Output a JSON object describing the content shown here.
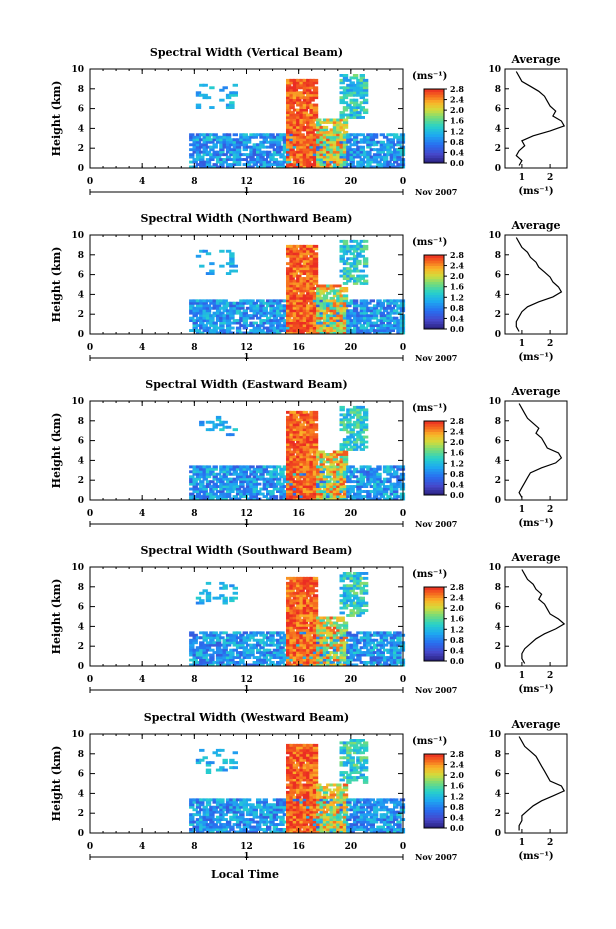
{
  "figure": {
    "xlabel": "Local Time"
  },
  "chart_data": [
    {
      "type": "heatmap",
      "title": "Spectral Width (Vertical Beam)",
      "ylabel": "Height (km)",
      "xlim": [
        0,
        24
      ],
      "ylim": [
        0,
        10
      ],
      "x_ticks": [
        "0",
        "4",
        "8",
        "12",
        "16",
        "20",
        "0"
      ],
      "y_ticks": [
        "0",
        "2",
        "4",
        "6",
        "8",
        "10"
      ],
      "colorbar": {
        "label": "(ms⁻¹)",
        "range": [
          0,
          2.8
        ],
        "ticks": [
          "0.0",
          "0.4",
          "0.8",
          "1.2",
          "1.6",
          "2.0",
          "2.4",
          "2.8"
        ]
      },
      "date_label": "Nov 2007",
      "day_marker": "1",
      "average": {
        "title": "Average",
        "xlabel": "(ms⁻¹)",
        "x_ticks": [
          "1",
          "2"
        ],
        "xlim": [
          0.4,
          2.6
        ],
        "y_ticks": [
          "0",
          "2",
          "4",
          "6",
          "8",
          "10"
        ],
        "heights": [
          0,
          0.5,
          1,
          1.5,
          2,
          2.5,
          3,
          3.5,
          4,
          4.5,
          5,
          5.5,
          6,
          6.5,
          7,
          7.5,
          8,
          8.5,
          9,
          9.5
        ],
        "values": [
          0.9,
          1.0,
          0.8,
          0.9,
          1.1,
          1.0,
          1.4,
          2.0,
          2.5,
          2.4,
          2.1,
          2.2,
          2.0,
          1.9,
          1.8,
          1.6,
          1.3,
          1.0,
          0.9,
          0.8
        ]
      }
    },
    {
      "type": "heatmap",
      "title": "Spectral Width (Northward Beam)",
      "ylabel": "Height (km)",
      "xlim": [
        0,
        24
      ],
      "ylim": [
        0,
        10
      ],
      "x_ticks": [
        "0",
        "4",
        "8",
        "12",
        "16",
        "20",
        "0"
      ],
      "y_ticks": [
        "0",
        "2",
        "4",
        "6",
        "8",
        "10"
      ],
      "colorbar": {
        "label": "(ms⁻¹)",
        "range": [
          0,
          2.8
        ],
        "ticks": [
          "0.0",
          "0.4",
          "0.8",
          "1.2",
          "1.6",
          "2.0",
          "2.4",
          "2.8"
        ]
      },
      "date_label": "Nov 2007",
      "day_marker": "1",
      "average": {
        "title": "Average",
        "xlabel": "(ms⁻¹)",
        "x_ticks": [
          "1",
          "2"
        ],
        "xlim": [
          0.4,
          2.6
        ],
        "y_ticks": [
          "0",
          "2",
          "4",
          "6",
          "8",
          "10"
        ],
        "heights": [
          0,
          0.5,
          1,
          1.5,
          2,
          2.5,
          3,
          3.5,
          4,
          4.5,
          5,
          5.5,
          6,
          6.5,
          7,
          7.5,
          8,
          8.5,
          9,
          9.5
        ],
        "values": [
          0.9,
          0.8,
          0.8,
          0.9,
          1.0,
          1.2,
          1.6,
          2.1,
          2.4,
          2.3,
          2.1,
          2.0,
          1.8,
          1.6,
          1.5,
          1.3,
          1.2,
          1.0,
          0.9,
          0.8
        ]
      }
    },
    {
      "type": "heatmap",
      "title": "Spectral Width (Eastward Beam)",
      "ylabel": "Height (km)",
      "xlim": [
        0,
        24
      ],
      "ylim": [
        0,
        10
      ],
      "x_ticks": [
        "0",
        "4",
        "8",
        "12",
        "16",
        "20",
        "0"
      ],
      "y_ticks": [
        "0",
        "2",
        "4",
        "6",
        "8",
        "10"
      ],
      "colorbar": {
        "label": "(ms⁻¹)",
        "range": [
          0,
          2.8
        ],
        "ticks": [
          "0.0",
          "0.4",
          "0.8",
          "1.2",
          "1.6",
          "2.0",
          "2.4",
          "2.8"
        ]
      },
      "date_label": "Nov 2007",
      "day_marker": "1",
      "average": {
        "title": "Average",
        "xlabel": "(ms⁻¹)",
        "x_ticks": [
          "1",
          "2"
        ],
        "xlim": [
          0.4,
          2.6
        ],
        "y_ticks": [
          "0",
          "2",
          "4",
          "6",
          "8",
          "10"
        ],
        "heights": [
          0,
          0.5,
          1,
          1.5,
          2,
          2.5,
          3,
          3.5,
          4,
          4.5,
          5,
          5.5,
          6,
          6.5,
          7,
          7.5,
          8,
          8.5,
          9,
          9.5
        ],
        "values": [
          1.0,
          0.9,
          1.0,
          1.1,
          1.2,
          1.3,
          1.7,
          2.2,
          2.4,
          2.3,
          1.9,
          1.8,
          1.7,
          1.5,
          1.6,
          1.4,
          1.2,
          1.1,
          1.0,
          0.9
        ]
      }
    },
    {
      "type": "heatmap",
      "title": "Spectral Width (Southward Beam)",
      "ylabel": "Height (km)",
      "xlim": [
        0,
        24
      ],
      "ylim": [
        0,
        10
      ],
      "x_ticks": [
        "0",
        "4",
        "8",
        "12",
        "16",
        "20",
        "0"
      ],
      "y_ticks": [
        "0",
        "2",
        "4",
        "6",
        "8",
        "10"
      ],
      "colorbar": {
        "label": "(ms⁻¹)",
        "range": [
          0,
          2.8
        ],
        "ticks": [
          "0.0",
          "0.4",
          "0.8",
          "1.2",
          "1.6",
          "2.0",
          "2.4",
          "2.8"
        ]
      },
      "date_label": "Nov 2007",
      "day_marker": "1",
      "average": {
        "title": "Average",
        "xlabel": "(ms⁻¹)",
        "x_ticks": [
          "1",
          "2"
        ],
        "xlim": [
          0.4,
          2.6
        ],
        "y_ticks": [
          "0",
          "2",
          "4",
          "6",
          "8",
          "10"
        ],
        "heights": [
          0,
          0.5,
          1,
          1.5,
          2,
          2.5,
          3,
          3.5,
          4,
          4.5,
          5,
          5.5,
          6,
          6.5,
          7,
          7.5,
          8,
          8.5,
          9,
          9.5
        ],
        "values": [
          1.1,
          1.0,
          1.0,
          1.1,
          1.3,
          1.5,
          1.8,
          2.2,
          2.5,
          2.3,
          2.0,
          1.9,
          1.8,
          1.6,
          1.7,
          1.5,
          1.4,
          1.2,
          1.1,
          1.0
        ]
      }
    },
    {
      "type": "heatmap",
      "title": "Spectral Width (Westward Beam)",
      "ylabel": "Height (km)",
      "xlim": [
        0,
        24
      ],
      "ylim": [
        0,
        10
      ],
      "x_ticks": [
        "0",
        "4",
        "8",
        "12",
        "16",
        "20",
        "0"
      ],
      "y_ticks": [
        "0",
        "2",
        "4",
        "6",
        "8",
        "10"
      ],
      "colorbar": {
        "label": "(ms⁻¹)",
        "range": [
          0,
          2.8
        ],
        "ticks": [
          "0.0",
          "0.4",
          "0.8",
          "1.2",
          "1.6",
          "2.0",
          "2.4",
          "2.8"
        ]
      },
      "date_label": "Nov 2007",
      "day_marker": "1",
      "average": {
        "title": "Average",
        "xlabel": "(ms⁻¹)",
        "x_ticks": [
          "1",
          "2"
        ],
        "xlim": [
          0.4,
          2.6
        ],
        "y_ticks": [
          "0",
          "2",
          "4",
          "6",
          "8",
          "10"
        ],
        "heights": [
          0,
          0.5,
          1,
          1.5,
          2,
          2.5,
          3,
          3.5,
          4,
          4.5,
          5,
          5.5,
          6,
          6.5,
          7,
          7.5,
          8,
          8.5,
          9,
          9.5
        ],
        "values": [
          0.9,
          0.9,
          1.0,
          1.0,
          1.2,
          1.4,
          1.7,
          2.1,
          2.5,
          2.4,
          2.0,
          1.9,
          1.8,
          1.7,
          1.6,
          1.5,
          1.3,
          1.1,
          1.0,
          0.9
        ]
      }
    }
  ]
}
